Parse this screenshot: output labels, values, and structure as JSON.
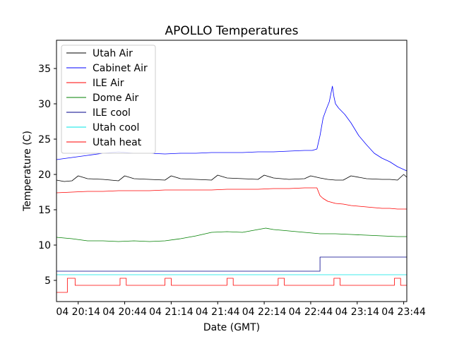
{
  "chart_data": {
    "type": "line",
    "title": "APOLLO Temperatures",
    "xlabel": "Date (GMT)",
    "ylabel": "Temperature (C)",
    "x_unit": "minutes since 04 20:00 GMT",
    "xlim": [
      0,
      226
    ],
    "ylim": [
      2,
      39
    ],
    "x_ticks": [
      {
        "value": 14,
        "label": "04 20:14"
      },
      {
        "value": 44,
        "label": "04 20:44"
      },
      {
        "value": 74,
        "label": "04 21:14"
      },
      {
        "value": 104,
        "label": "04 21:44"
      },
      {
        "value": 134,
        "label": "04 22:14"
      },
      {
        "value": 164,
        "label": "04 22:44"
      },
      {
        "value": 194,
        "label": "04 23:14"
      },
      {
        "value": 224,
        "label": "04 23:44"
      }
    ],
    "y_ticks": [
      {
        "value": 5,
        "label": "5"
      },
      {
        "value": 10,
        "label": "10"
      },
      {
        "value": 15,
        "label": "15"
      },
      {
        "value": 20,
        "label": "20"
      },
      {
        "value": 25,
        "label": "25"
      },
      {
        "value": 30,
        "label": "30"
      },
      {
        "value": 35,
        "label": "35"
      }
    ],
    "legend_position": "top-left",
    "series": [
      {
        "name": "Utah Air",
        "color": "#000000",
        "x": [
          0,
          5,
          10,
          14,
          20,
          30,
          40,
          44,
          50,
          60,
          70,
          74,
          80,
          90,
          100,
          104,
          110,
          120,
          130,
          134,
          140,
          150,
          160,
          164,
          170,
          175,
          180,
          185,
          190,
          200,
          210,
          215,
          220,
          224,
          226
        ],
        "y": [
          19.2,
          19.0,
          19.1,
          19.8,
          19.4,
          19.3,
          19.1,
          19.8,
          19.4,
          19.3,
          19.2,
          19.8,
          19.4,
          19.3,
          19.2,
          19.9,
          19.5,
          19.4,
          19.3,
          19.9,
          19.5,
          19.3,
          19.4,
          19.8,
          19.5,
          19.3,
          19.2,
          19.2,
          19.8,
          19.4,
          19.3,
          19.3,
          19.2,
          20.0,
          19.6
        ]
      },
      {
        "name": "Cabinet Air",
        "color": "#0000ff",
        "x": [
          0,
          10,
          20,
          30,
          40,
          50,
          60,
          70,
          80,
          90,
          100,
          110,
          120,
          130,
          140,
          150,
          160,
          165,
          168,
          170,
          172,
          174,
          176,
          178,
          179,
          180,
          182,
          186,
          190,
          195,
          200,
          205,
          210,
          215,
          220,
          226
        ],
        "y": [
          22.1,
          22.4,
          22.7,
          23.0,
          23.2,
          23.0,
          23.0,
          22.9,
          23.0,
          23.0,
          23.1,
          23.1,
          23.1,
          23.2,
          23.2,
          23.3,
          23.4,
          23.4,
          23.6,
          25.5,
          28.0,
          29.2,
          30.3,
          32.5,
          31.0,
          30.0,
          29.4,
          28.5,
          27.3,
          25.5,
          24.2,
          23.0,
          22.3,
          21.8,
          21.1,
          20.5
        ]
      },
      {
        "name": "ILE Air",
        "color": "#ff0000",
        "x": [
          0,
          10,
          20,
          30,
          40,
          50,
          60,
          70,
          80,
          90,
          100,
          110,
          120,
          130,
          140,
          150,
          160,
          165,
          168,
          170,
          172,
          175,
          180,
          185,
          190,
          195,
          200,
          205,
          210,
          215,
          220,
          226
        ],
        "y": [
          17.4,
          17.5,
          17.6,
          17.6,
          17.7,
          17.7,
          17.7,
          17.8,
          17.8,
          17.8,
          17.8,
          17.9,
          17.9,
          17.9,
          18.0,
          18.0,
          18.1,
          18.1,
          18.1,
          17.0,
          16.6,
          16.2,
          15.9,
          15.8,
          15.6,
          15.5,
          15.4,
          15.3,
          15.2,
          15.2,
          15.1,
          15.1
        ]
      },
      {
        "name": "Dome Air",
        "color": "#008000",
        "x": [
          0,
          10,
          20,
          30,
          40,
          50,
          60,
          70,
          80,
          90,
          100,
          110,
          120,
          130,
          135,
          140,
          150,
          160,
          170,
          180,
          190,
          200,
          210,
          220,
          226
        ],
        "y": [
          11.1,
          10.9,
          10.6,
          10.6,
          10.5,
          10.6,
          10.5,
          10.6,
          10.9,
          11.3,
          11.8,
          11.9,
          11.8,
          12.2,
          12.4,
          12.2,
          12.0,
          11.8,
          11.6,
          11.6,
          11.5,
          11.4,
          11.3,
          11.2,
          11.2
        ]
      },
      {
        "name": "ILE cool",
        "color": "#00008b",
        "x": [
          0,
          170,
          170,
          226
        ],
        "y": [
          6.3,
          6.3,
          8.3,
          8.3
        ]
      },
      {
        "name": "Utah cool",
        "color": "#00e5e5",
        "x": [
          0,
          226
        ],
        "y": [
          5.8,
          5.8
        ]
      },
      {
        "name": "Utah heat",
        "color": "#ff0000",
        "x": [
          0,
          7,
          7,
          12,
          12,
          41,
          41,
          45,
          45,
          70,
          70,
          74,
          74,
          110,
          110,
          114,
          114,
          143,
          143,
          147,
          147,
          179,
          179,
          183,
          183,
          218,
          218,
          222,
          222,
          226
        ],
        "y": [
          3.3,
          3.3,
          5.3,
          5.3,
          4.3,
          4.3,
          5.3,
          5.3,
          4.3,
          4.3,
          5.3,
          5.3,
          4.3,
          4.3,
          5.3,
          5.3,
          4.3,
          4.3,
          5.3,
          5.3,
          4.3,
          4.3,
          5.3,
          5.3,
          4.3,
          4.3,
          5.3,
          5.3,
          4.3,
          4.3
        ]
      }
    ]
  }
}
